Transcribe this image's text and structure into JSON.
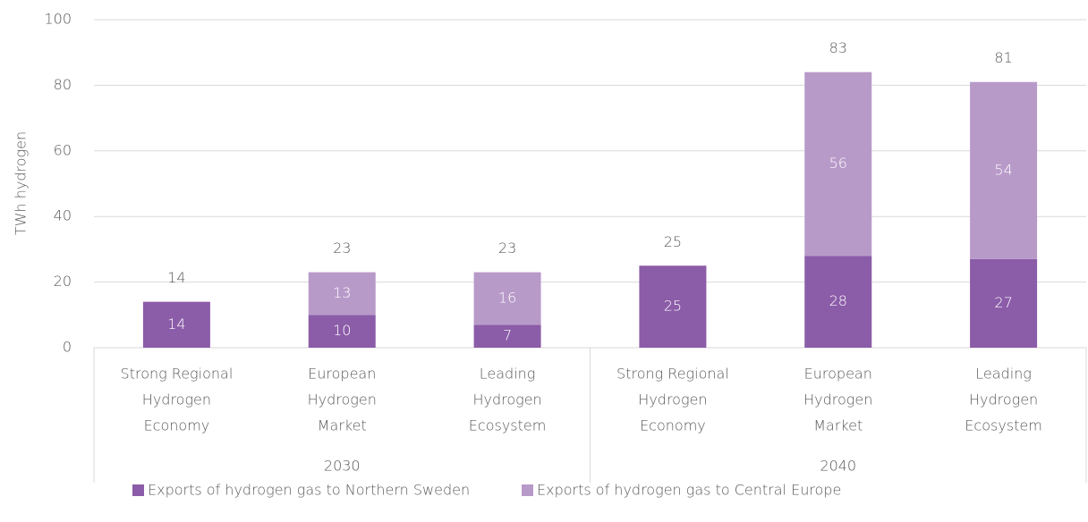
{
  "chart_data": {
    "type": "stacked_bar",
    "y_axis_label": "TWh hydrogen",
    "categories": [
      [
        "Strong Regional",
        "Hydrogen",
        "Economy"
      ],
      [
        "European",
        "Hydrogen",
        "Market"
      ],
      [
        "Leading",
        "Hydrogen",
        "Ecosystem"
      ],
      [
        "Strong Regional",
        "Hydrogen",
        "Economy"
      ],
      [
        "European",
        "Hydrogen",
        "Market"
      ],
      [
        "Leading",
        "Hydrogen",
        "Ecosystem"
      ]
    ],
    "groups": [
      {
        "label": "2030",
        "size": 3
      },
      {
        "label": "2040",
        "size": 3
      }
    ],
    "series": [
      {
        "name": "Exports of hydrogen gas to Northern Sweden",
        "color": "#8b5ca8",
        "values": [
          14,
          10,
          7,
          25,
          28,
          27
        ]
      },
      {
        "name": "Exports of hydrogen gas to Central Europe",
        "color": "#b89ac9",
        "values": [
          null,
          13,
          16,
          null,
          56,
          54
        ]
      }
    ],
    "totals": [
      14,
      23,
      23,
      25,
      83,
      81
    ],
    "ylim": [
      0,
      100
    ],
    "yticks": [
      0,
      20,
      40,
      60,
      80,
      100
    ],
    "grid": true,
    "legend": "bottom"
  }
}
